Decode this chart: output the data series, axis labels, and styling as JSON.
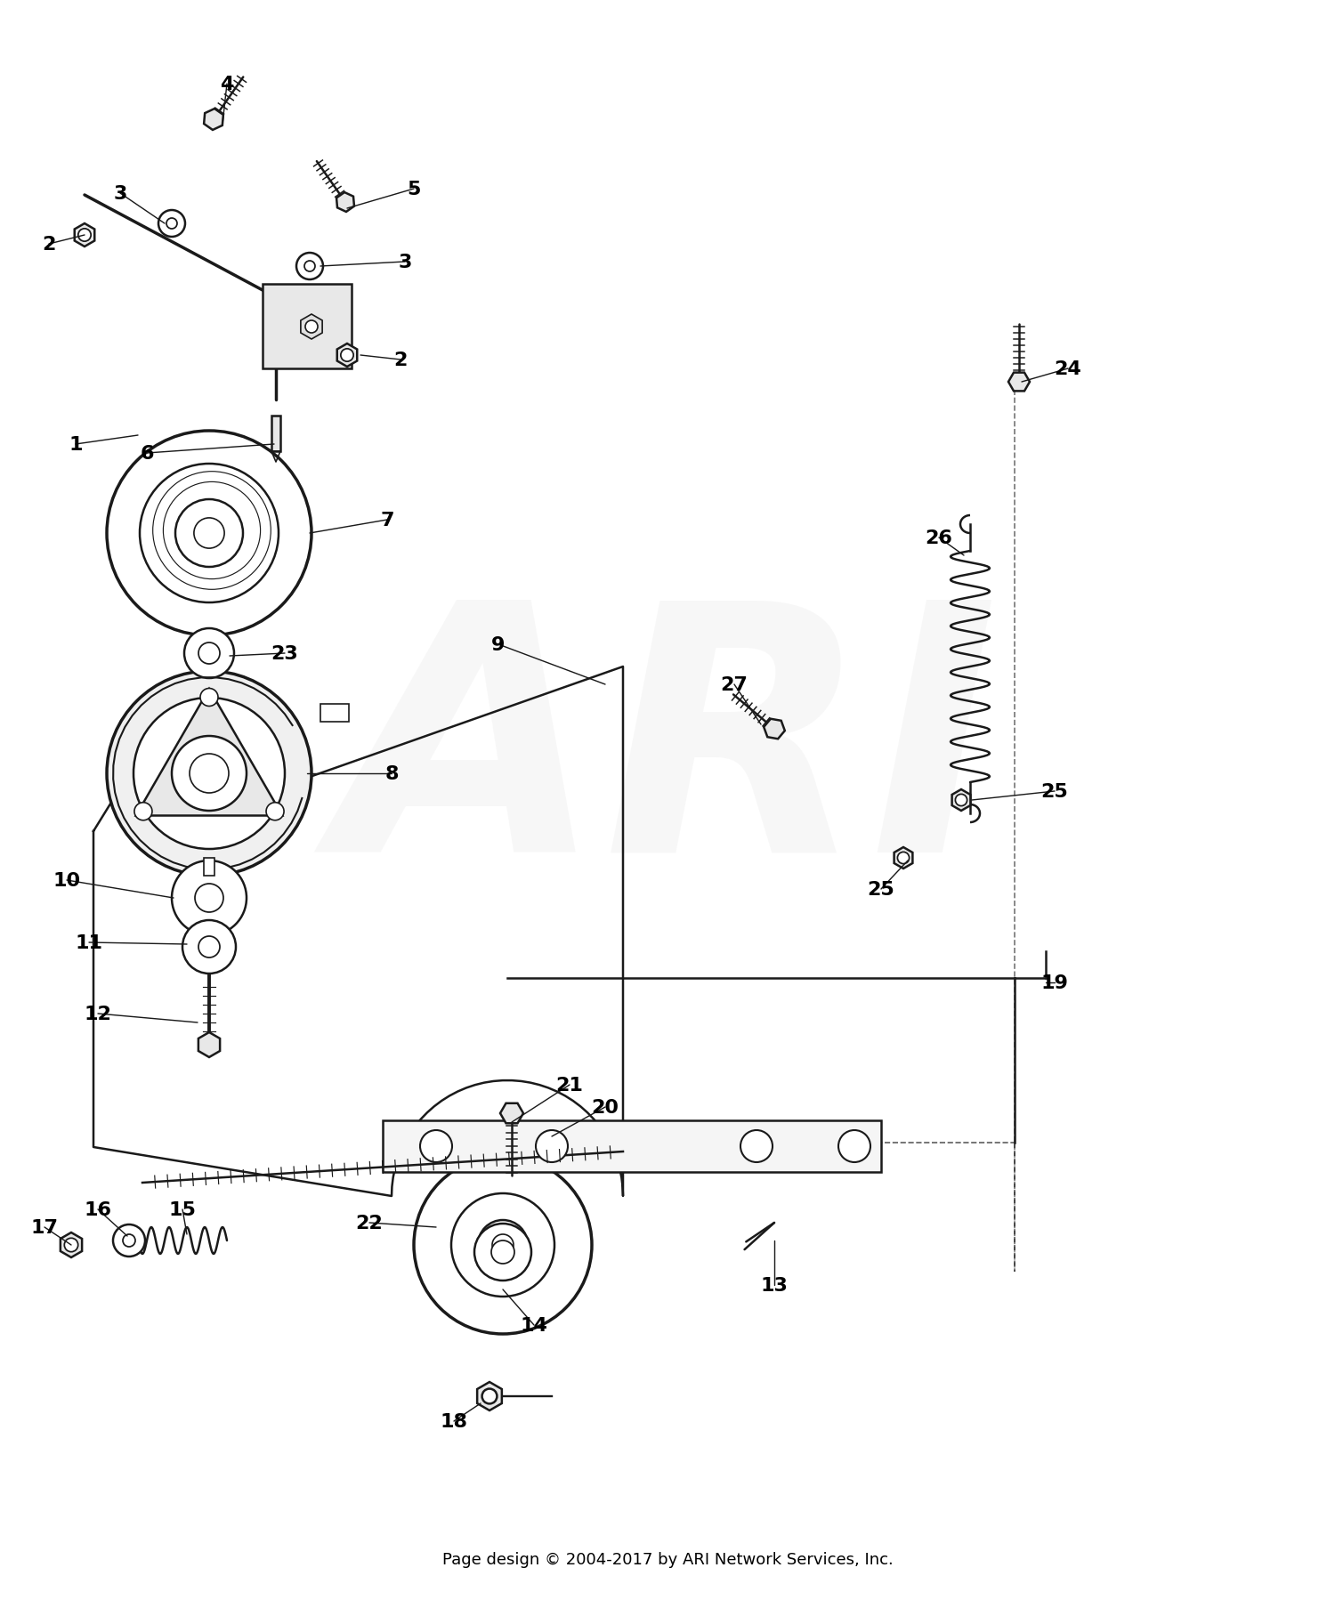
{
  "footer": "Page design © 2004-2017 by ARI Network Services, Inc.",
  "watermark": "ARI",
  "background_color": "#ffffff",
  "line_color": "#1a1a1a",
  "footer_fontsize": 13,
  "watermark_alpha": 0.13,
  "watermark_color": "#c8c8c8"
}
